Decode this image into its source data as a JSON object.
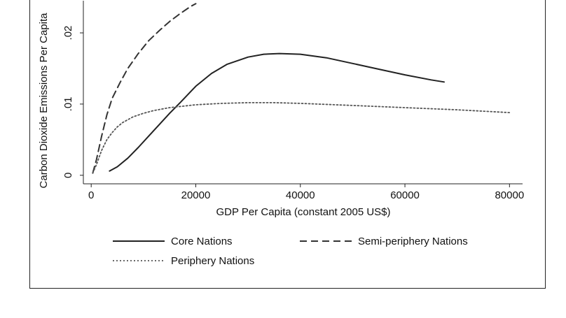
{
  "chart_data": {
    "type": "line",
    "title": "",
    "xlabel": "GDP Per Capita (constant 2005 US$)",
    "ylabel": "Carbon Dioxide Emissions Per Capita",
    "xlim": [
      -1500,
      82500
    ],
    "ylim": [
      -0.0012,
      0.0255
    ],
    "x_ticks": [
      0,
      20000,
      40000,
      60000,
      80000
    ],
    "y_ticks": [
      {
        "value": 0,
        "label": "0"
      },
      {
        "value": 0.01,
        "label": ".01"
      },
      {
        "value": 0.02,
        "label": ".02"
      }
    ],
    "grid": false,
    "legend_position": "bottom",
    "series": [
      {
        "name": "Core Nations",
        "style": "solid",
        "color": "#222222",
        "x": [
          3500,
          5000,
          7000,
          9000,
          11000,
          13000,
          15000,
          17000,
          20000,
          23000,
          26000,
          30000,
          33000,
          36000,
          40000,
          45000,
          50000,
          55000,
          60000,
          65000,
          67500
        ],
        "y": [
          0.0006,
          0.0012,
          0.0024,
          0.0039,
          0.0055,
          0.0071,
          0.0087,
          0.0102,
          0.0125,
          0.0143,
          0.0156,
          0.0166,
          0.017,
          0.0171,
          0.017,
          0.0165,
          0.0157,
          0.0149,
          0.0141,
          0.0134,
          0.0131
        ]
      },
      {
        "name": "Semi-periphery Nations",
        "style": "dashed",
        "color": "#333333",
        "x": [
          300,
          1000,
          2000,
          3000,
          4000,
          5500,
          7000,
          9000,
          11000,
          13000,
          15000,
          17000,
          19000,
          20000
        ],
        "y": [
          0.0003,
          0.0022,
          0.0055,
          0.0085,
          0.0108,
          0.013,
          0.015,
          0.0171,
          0.0189,
          0.0203,
          0.0216,
          0.0227,
          0.0237,
          0.0241
        ]
      },
      {
        "name": "Periphery Nations",
        "style": "dotted",
        "color": "#555555",
        "x": [
          300,
          1000,
          2000,
          3000,
          4000,
          5000,
          6000,
          8000,
          10000,
          12000,
          15000,
          20000,
          25000,
          30000,
          35000,
          40000,
          50000,
          60000,
          70000,
          80000
        ],
        "y": [
          0.0003,
          0.0015,
          0.0035,
          0.005,
          0.006,
          0.0068,
          0.0074,
          0.0082,
          0.0087,
          0.0091,
          0.0095,
          0.0099,
          0.0101,
          0.0102,
          0.0102,
          0.0101,
          0.0098,
          0.0095,
          0.0092,
          0.0088
        ]
      }
    ]
  }
}
